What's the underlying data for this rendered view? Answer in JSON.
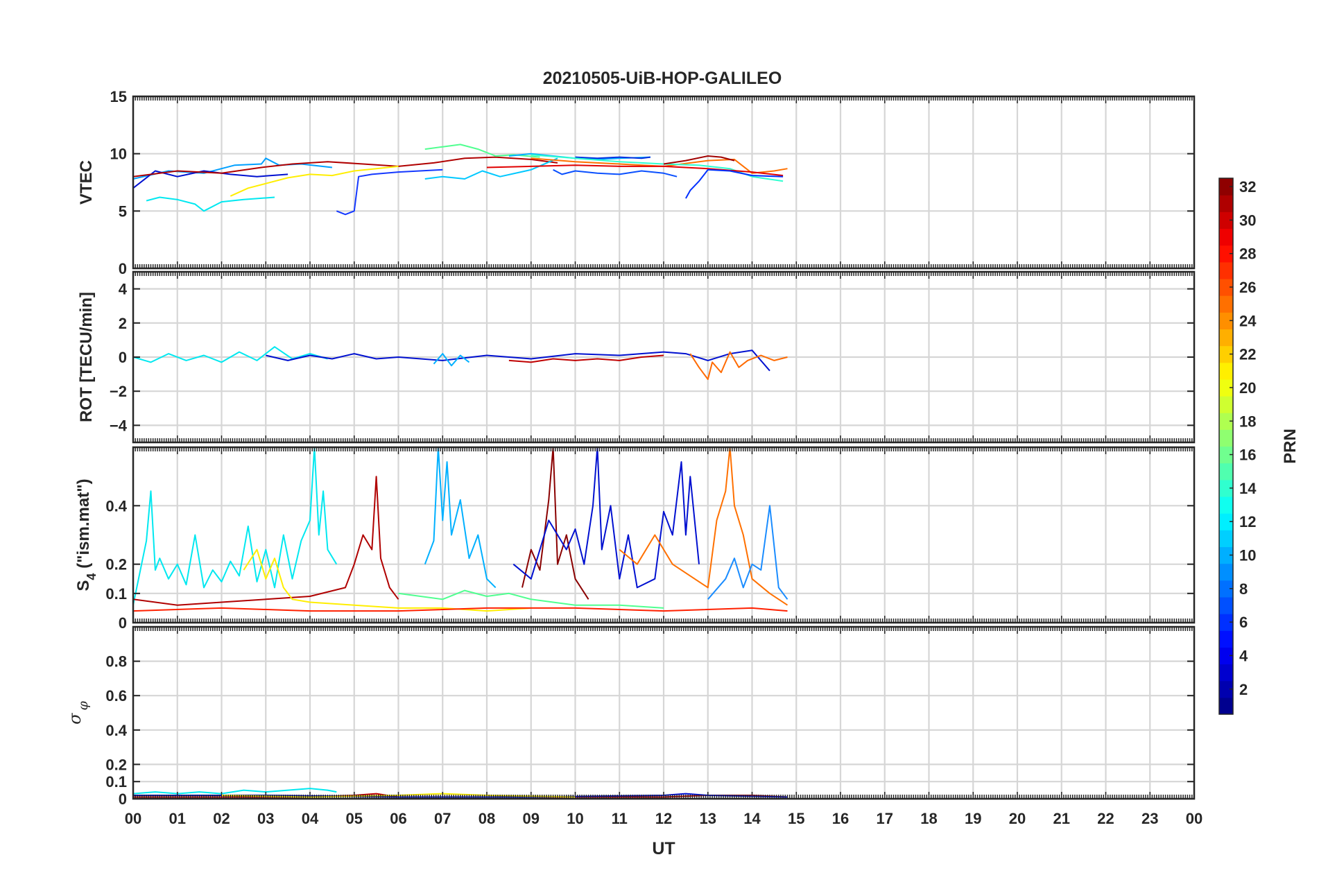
{
  "chart_data": [
    {
      "type": "line",
      "panel": "vtec",
      "title": "20210505-UiB-HOP-GALILEO",
      "ylabel": "VTEC",
      "xlabel": "",
      "ylim": [
        0,
        15
      ],
      "yticks": [
        "0",
        "5",
        "10",
        "15"
      ],
      "grid": true,
      "series": [
        {
          "color": "#00a0ff",
          "x": [
            0.0,
            0.8,
            1.6,
            2.3,
            2.9,
            3.0,
            3.3,
            3.8,
            4.5
          ],
          "y": [
            7.8,
            8.5,
            8.3,
            9.0,
            9.1,
            9.6,
            9.0,
            9.1,
            8.8
          ]
        },
        {
          "color": "#00e8f0",
          "x": [
            0.3,
            0.6,
            1.0,
            1.4,
            1.6,
            2.0,
            2.5,
            3.2
          ],
          "y": [
            5.9,
            6.2,
            6.0,
            5.6,
            5.0,
            5.8,
            6.0,
            6.2
          ]
        },
        {
          "color": "#0010d0",
          "x": [
            0.0,
            0.5,
            1.0,
            1.6,
            2.2,
            2.8,
            3.5
          ],
          "y": [
            7.0,
            8.5,
            8.0,
            8.5,
            8.2,
            8.0,
            8.2
          ]
        },
        {
          "color": "#b00000",
          "x": [
            0.0,
            1.0,
            2.0,
            2.9,
            3.6,
            4.4,
            5.2,
            6.0,
            6.8,
            7.5,
            8.2,
            9.0,
            9.6
          ],
          "y": [
            8.0,
            8.5,
            8.3,
            8.8,
            9.1,
            9.3,
            9.1,
            8.9,
            9.2,
            9.6,
            9.7,
            9.5,
            9.2
          ]
        },
        {
          "color": "#ffee00",
          "x": [
            2.2,
            2.6,
            3.0,
            3.5,
            4.0,
            4.5,
            5.0,
            5.5,
            6.0
          ],
          "y": [
            6.3,
            7.0,
            7.4,
            7.9,
            8.2,
            8.1,
            8.5,
            8.7,
            8.9
          ]
        },
        {
          "color": "#50ff90",
          "x": [
            6.6,
            7.0,
            7.4,
            7.8,
            8.2,
            8.6,
            9.2
          ],
          "y": [
            10.4,
            10.6,
            10.8,
            10.4,
            9.8,
            9.9,
            9.7
          ]
        },
        {
          "color": "#00c8ff",
          "x": [
            6.6,
            7.0,
            7.5,
            7.9,
            8.3,
            9.0,
            9.6
          ],
          "y": [
            7.8,
            8.0,
            7.8,
            8.5,
            8.0,
            8.6,
            9.6
          ]
        },
        {
          "color": "#1438ff",
          "x": [
            4.6,
            4.8,
            5.0,
            5.1,
            5.4,
            6.0,
            7.0
          ],
          "y": [
            5.0,
            4.7,
            5.0,
            8.0,
            8.2,
            8.4,
            8.6
          ]
        },
        {
          "color": "#0a50ff",
          "x": [
            9.5,
            9.7,
            10.0,
            10.5,
            11.0,
            11.5,
            12.0,
            12.3
          ],
          "y": [
            8.6,
            8.2,
            8.5,
            8.3,
            8.2,
            8.5,
            8.3,
            8.0
          ]
        },
        {
          "color": "#00b0ff",
          "x": [
            8.5,
            9.0,
            9.5,
            10.0,
            10.5,
            11.0,
            11.7
          ],
          "y": [
            9.8,
            10.0,
            9.8,
            9.6,
            9.5,
            9.6,
            9.7
          ]
        },
        {
          "color": "#0030e0",
          "x": [
            10.0,
            10.5,
            11.0,
            11.5,
            11.7
          ],
          "y": [
            9.7,
            9.6,
            9.7,
            9.6,
            9.7
          ]
        },
        {
          "color": "#ff7000",
          "x": [
            9.0,
            10.0,
            11.0,
            12.0,
            13.0,
            13.6,
            14.0,
            14.5,
            14.8
          ],
          "y": [
            9.6,
            9.3,
            9.1,
            8.9,
            9.4,
            9.5,
            8.3,
            8.5,
            8.7
          ]
        },
        {
          "color": "#30ffd0",
          "x": [
            9.0,
            10.0,
            11.0,
            12.0,
            12.8,
            13.5,
            14.0,
            14.7
          ],
          "y": [
            9.9,
            9.6,
            9.3,
            9.1,
            9.0,
            8.7,
            8.0,
            7.6
          ]
        },
        {
          "color": "#e00000",
          "x": [
            8.0,
            9.0,
            10.0,
            11.0,
            12.0,
            13.0,
            14.0,
            14.7
          ],
          "y": [
            8.8,
            8.9,
            9.0,
            8.9,
            8.9,
            8.7,
            8.4,
            8.1
          ]
        },
        {
          "color": "#0030ff",
          "x": [
            12.5,
            12.6,
            12.8,
            13.0,
            13.5,
            14.0,
            14.7
          ],
          "y": [
            6.1,
            6.8,
            7.6,
            8.6,
            8.5,
            8.1,
            8.0
          ]
        },
        {
          "color": "#a00000",
          "x": [
            12.0,
            12.5,
            13.0,
            13.3,
            13.6
          ],
          "y": [
            9.1,
            9.4,
            9.8,
            9.7,
            9.4
          ]
        }
      ]
    },
    {
      "type": "line",
      "panel": "rot",
      "ylabel": "ROT [TECU/min]",
      "ylim": [
        -5,
        5
      ],
      "yticks": [
        "-4",
        "-2",
        "0",
        "2",
        "4"
      ],
      "grid": true,
      "series": [
        {
          "color": "#00e8f0",
          "x": [
            0.0,
            0.4,
            0.8,
            1.2,
            1.6,
            2.0,
            2.4,
            2.8,
            3.2,
            3.6,
            4.0,
            4.4
          ],
          "y": [
            0.0,
            -0.3,
            0.2,
            -0.2,
            0.1,
            -0.3,
            0.3,
            -0.2,
            0.6,
            -0.1,
            0.2,
            -0.1
          ]
        },
        {
          "color": "#0010d0",
          "x": [
            3.0,
            3.5,
            4.0,
            4.5,
            5.0,
            5.5,
            6.0,
            7.0,
            8.0,
            9.0,
            10.0,
            11.0,
            12.0,
            12.5,
            13.0,
            13.5,
            14.0,
            14.4
          ],
          "y": [
            0.1,
            -0.2,
            0.1,
            -0.1,
            0.2,
            -0.1,
            0.0,
            -0.2,
            0.1,
            -0.1,
            0.2,
            0.1,
            0.3,
            0.2,
            -0.2,
            0.2,
            0.4,
            -0.8
          ]
        },
        {
          "color": "#ff6a00",
          "x": [
            12.6,
            12.8,
            13.0,
            13.1,
            13.3,
            13.5,
            13.7,
            13.9,
            14.2,
            14.5,
            14.8
          ],
          "y": [
            0.2,
            -0.6,
            -1.3,
            -0.3,
            -0.9,
            0.3,
            -0.6,
            -0.2,
            0.1,
            -0.2,
            0.0
          ]
        },
        {
          "color": "#c00000",
          "x": [
            8.5,
            9.0,
            9.5,
            10.0,
            10.5,
            11.0,
            11.5,
            12.0
          ],
          "y": [
            -0.2,
            -0.3,
            -0.1,
            -0.2,
            -0.1,
            -0.2,
            0.0,
            0.1
          ]
        },
        {
          "color": "#00b0ff",
          "x": [
            6.8,
            7.0,
            7.2,
            7.4,
            7.6
          ],
          "y": [
            -0.4,
            0.2,
            -0.5,
            0.1,
            -0.3
          ]
        }
      ]
    },
    {
      "type": "line",
      "panel": "s4",
      "ylabel": "S4 (\"ism.mat\")",
      "ylim": [
        0,
        0.6
      ],
      "yticks": [
        "0",
        "0.1",
        "0.2",
        "0.4"
      ],
      "grid": true,
      "series": [
        {
          "color": "#00e8f0",
          "x": [
            0.0,
            0.3,
            0.4,
            0.5,
            0.6,
            0.8,
            1.0,
            1.2,
            1.4,
            1.6,
            1.8,
            2.0,
            2.2,
            2.4,
            2.6,
            2.8,
            3.0,
            3.2,
            3.4,
            3.6,
            3.8,
            4.0,
            4.1,
            4.2,
            4.3,
            4.4,
            4.6
          ],
          "y": [
            0.06,
            0.28,
            0.45,
            0.18,
            0.22,
            0.15,
            0.2,
            0.13,
            0.3,
            0.12,
            0.18,
            0.14,
            0.21,
            0.16,
            0.33,
            0.14,
            0.25,
            0.12,
            0.3,
            0.15,
            0.28,
            0.35,
            0.6,
            0.3,
            0.45,
            0.25,
            0.2
          ]
        },
        {
          "color": "#b00000",
          "x": [
            0.0,
            1.0,
            2.0,
            3.0,
            4.0,
            4.8,
            5.0,
            5.2,
            5.4,
            5.5,
            5.6,
            5.8,
            6.0
          ],
          "y": [
            0.08,
            0.06,
            0.07,
            0.08,
            0.09,
            0.12,
            0.2,
            0.3,
            0.25,
            0.5,
            0.22,
            0.12,
            0.08
          ]
        },
        {
          "color": "#00b0ff",
          "x": [
            6.6,
            6.8,
            6.9,
            7.0,
            7.1,
            7.2,
            7.4,
            7.6,
            7.8,
            8.0,
            8.2
          ],
          "y": [
            0.2,
            0.28,
            0.6,
            0.35,
            0.55,
            0.3,
            0.42,
            0.22,
            0.3,
            0.15,
            0.12
          ]
        },
        {
          "color": "#8a0000",
          "x": [
            8.8,
            9.0,
            9.2,
            9.3,
            9.4,
            9.5,
            9.6,
            9.8,
            10.0,
            10.3
          ],
          "y": [
            0.12,
            0.25,
            0.18,
            0.3,
            0.42,
            0.6,
            0.2,
            0.3,
            0.15,
            0.08
          ]
        },
        {
          "color": "#0010d0",
          "x": [
            8.6,
            9.0,
            9.4,
            9.8,
            10.0,
            10.2,
            10.4,
            10.5,
            10.6,
            10.8,
            11.0,
            11.2,
            11.4,
            11.8,
            12.0,
            12.2,
            12.4,
            12.5,
            12.6,
            12.8
          ],
          "y": [
            0.2,
            0.15,
            0.35,
            0.25,
            0.32,
            0.2,
            0.4,
            0.6,
            0.25,
            0.4,
            0.15,
            0.3,
            0.12,
            0.15,
            0.38,
            0.3,
            0.55,
            0.3,
            0.5,
            0.2
          ]
        },
        {
          "color": "#ff7000",
          "x": [
            11.0,
            11.4,
            11.8,
            12.2,
            13.0,
            13.2,
            13.4,
            13.5,
            13.6,
            13.8,
            14.0,
            14.4,
            14.8
          ],
          "y": [
            0.25,
            0.2,
            0.3,
            0.2,
            0.12,
            0.35,
            0.45,
            0.6,
            0.4,
            0.3,
            0.15,
            0.1,
            0.06
          ]
        },
        {
          "color": "#1a8cff",
          "x": [
            13.0,
            13.4,
            13.6,
            13.8,
            14.0,
            14.2,
            14.4,
            14.6,
            14.8
          ],
          "y": [
            0.08,
            0.15,
            0.22,
            0.12,
            0.2,
            0.18,
            0.4,
            0.12,
            0.08
          ]
        },
        {
          "color": "#ffee00",
          "x": [
            2.5,
            2.8,
            3.0,
            3.2,
            3.4,
            3.6,
            4.0,
            5.0,
            6.0,
            7.0,
            8.0,
            9.0
          ],
          "y": [
            0.18,
            0.25,
            0.15,
            0.22,
            0.12,
            0.08,
            0.07,
            0.06,
            0.05,
            0.05,
            0.04,
            0.05
          ]
        },
        {
          "color": "#50ff90",
          "x": [
            6.0,
            6.5,
            7.0,
            7.5,
            8.0,
            8.5,
            9.0,
            9.5,
            10.0,
            11.0,
            12.0
          ],
          "y": [
            0.1,
            0.09,
            0.08,
            0.11,
            0.09,
            0.1,
            0.08,
            0.07,
            0.06,
            0.06,
            0.05
          ]
        },
        {
          "color": "#ff2000",
          "x": [
            0.0,
            2.0,
            4.0,
            6.0,
            8.0,
            10.0,
            12.0,
            14.0,
            14.8
          ],
          "y": [
            0.04,
            0.05,
            0.04,
            0.04,
            0.05,
            0.05,
            0.04,
            0.05,
            0.04
          ]
        }
      ]
    },
    {
      "type": "line",
      "panel": "sigma_phi",
      "ylabel": "σ φ",
      "xlabel": "UT",
      "ylim": [
        0,
        1
      ],
      "yticks": [
        "0",
        "0.1",
        "0.2",
        "0.4",
        "0.6",
        "0.8"
      ],
      "xticks": [
        "00",
        "01",
        "02",
        "03",
        "04",
        "05",
        "06",
        "07",
        "08",
        "09",
        "10",
        "11",
        "12",
        "13",
        "14",
        "15",
        "16",
        "17",
        "18",
        "19",
        "20",
        "21",
        "22",
        "23",
        "00"
      ],
      "xlim": [
        0,
        24
      ],
      "grid": true,
      "series": [
        {
          "color": "#00e8f0",
          "x": [
            0.0,
            0.5,
            1.0,
            1.5,
            2.0,
            2.5,
            3.0,
            3.5,
            4.0,
            4.4,
            4.6
          ],
          "y": [
            0.03,
            0.04,
            0.03,
            0.04,
            0.03,
            0.05,
            0.04,
            0.05,
            0.06,
            0.05,
            0.04
          ]
        },
        {
          "color": "#c00000",
          "x": [
            0.0,
            2.0,
            4.0,
            5.0,
            5.5,
            6.0,
            8.0,
            10.0,
            12.0,
            13.0,
            14.0,
            14.8
          ],
          "y": [
            0.01,
            0.01,
            0.01,
            0.02,
            0.03,
            0.01,
            0.01,
            0.01,
            0.01,
            0.02,
            0.02,
            0.01
          ]
        },
        {
          "color": "#0010d0",
          "x": [
            0.0,
            3.0,
            6.0,
            9.0,
            12.0,
            12.5,
            13.0,
            14.8
          ],
          "y": [
            0.02,
            0.02,
            0.01,
            0.01,
            0.02,
            0.03,
            0.02,
            0.01
          ]
        },
        {
          "color": "#ffee00",
          "x": [
            2.0,
            4.0,
            6.0,
            7.0,
            8.0,
            10.0
          ],
          "y": [
            0.02,
            0.01,
            0.02,
            0.03,
            0.02,
            0.01
          ]
        }
      ]
    }
  ],
  "colorbar": {
    "label": "PRN",
    "ticks": [
      "2",
      "4",
      "6",
      "8",
      "10",
      "12",
      "14",
      "16",
      "18",
      "20",
      "22",
      "24",
      "26",
      "28",
      "30",
      "32"
    ],
    "range": [
      1,
      32
    ],
    "colormap": "jet"
  }
}
